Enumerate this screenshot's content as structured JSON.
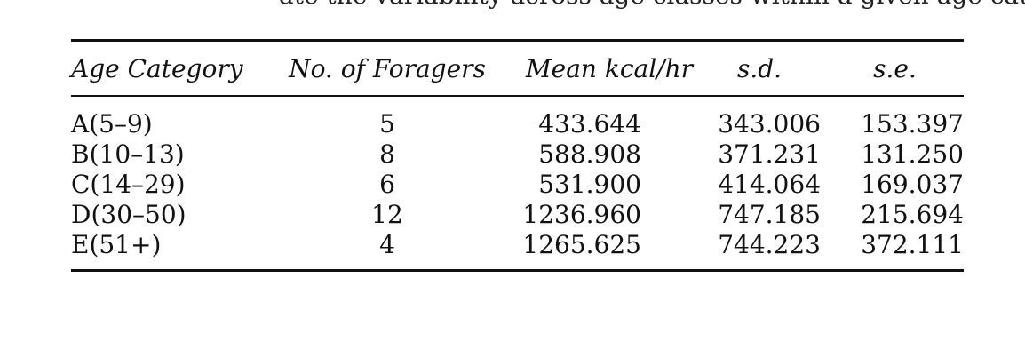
{
  "cutoff_text": "ate the variability across age classes within a given age category in this sample",
  "table": {
    "headers": [
      "Age Category",
      "No. of Foragers",
      "Mean kcal/hr",
      "s.d.",
      "s.e."
    ],
    "rows": [
      {
        "age": "A(5–9)",
        "n": "5",
        "mean": "433.644",
        "sd": "343.006",
        "se": "153.397"
      },
      {
        "age": "B(10–13)",
        "n": "8",
        "mean": "588.908",
        "sd": "371.231",
        "se": "131.250"
      },
      {
        "age": "C(14–29)",
        "n": "6",
        "mean": "531.900",
        "sd": "414.064",
        "se": "169.037"
      },
      {
        "age": "D(30–50)",
        "n": "12",
        "mean": "1236.960",
        "sd": "747.185",
        "se": "215.694"
      },
      {
        "age": "E(51+)",
        "n": "4",
        "mean": "1265.625",
        "sd": "744.223",
        "se": "372.111"
      }
    ]
  }
}
